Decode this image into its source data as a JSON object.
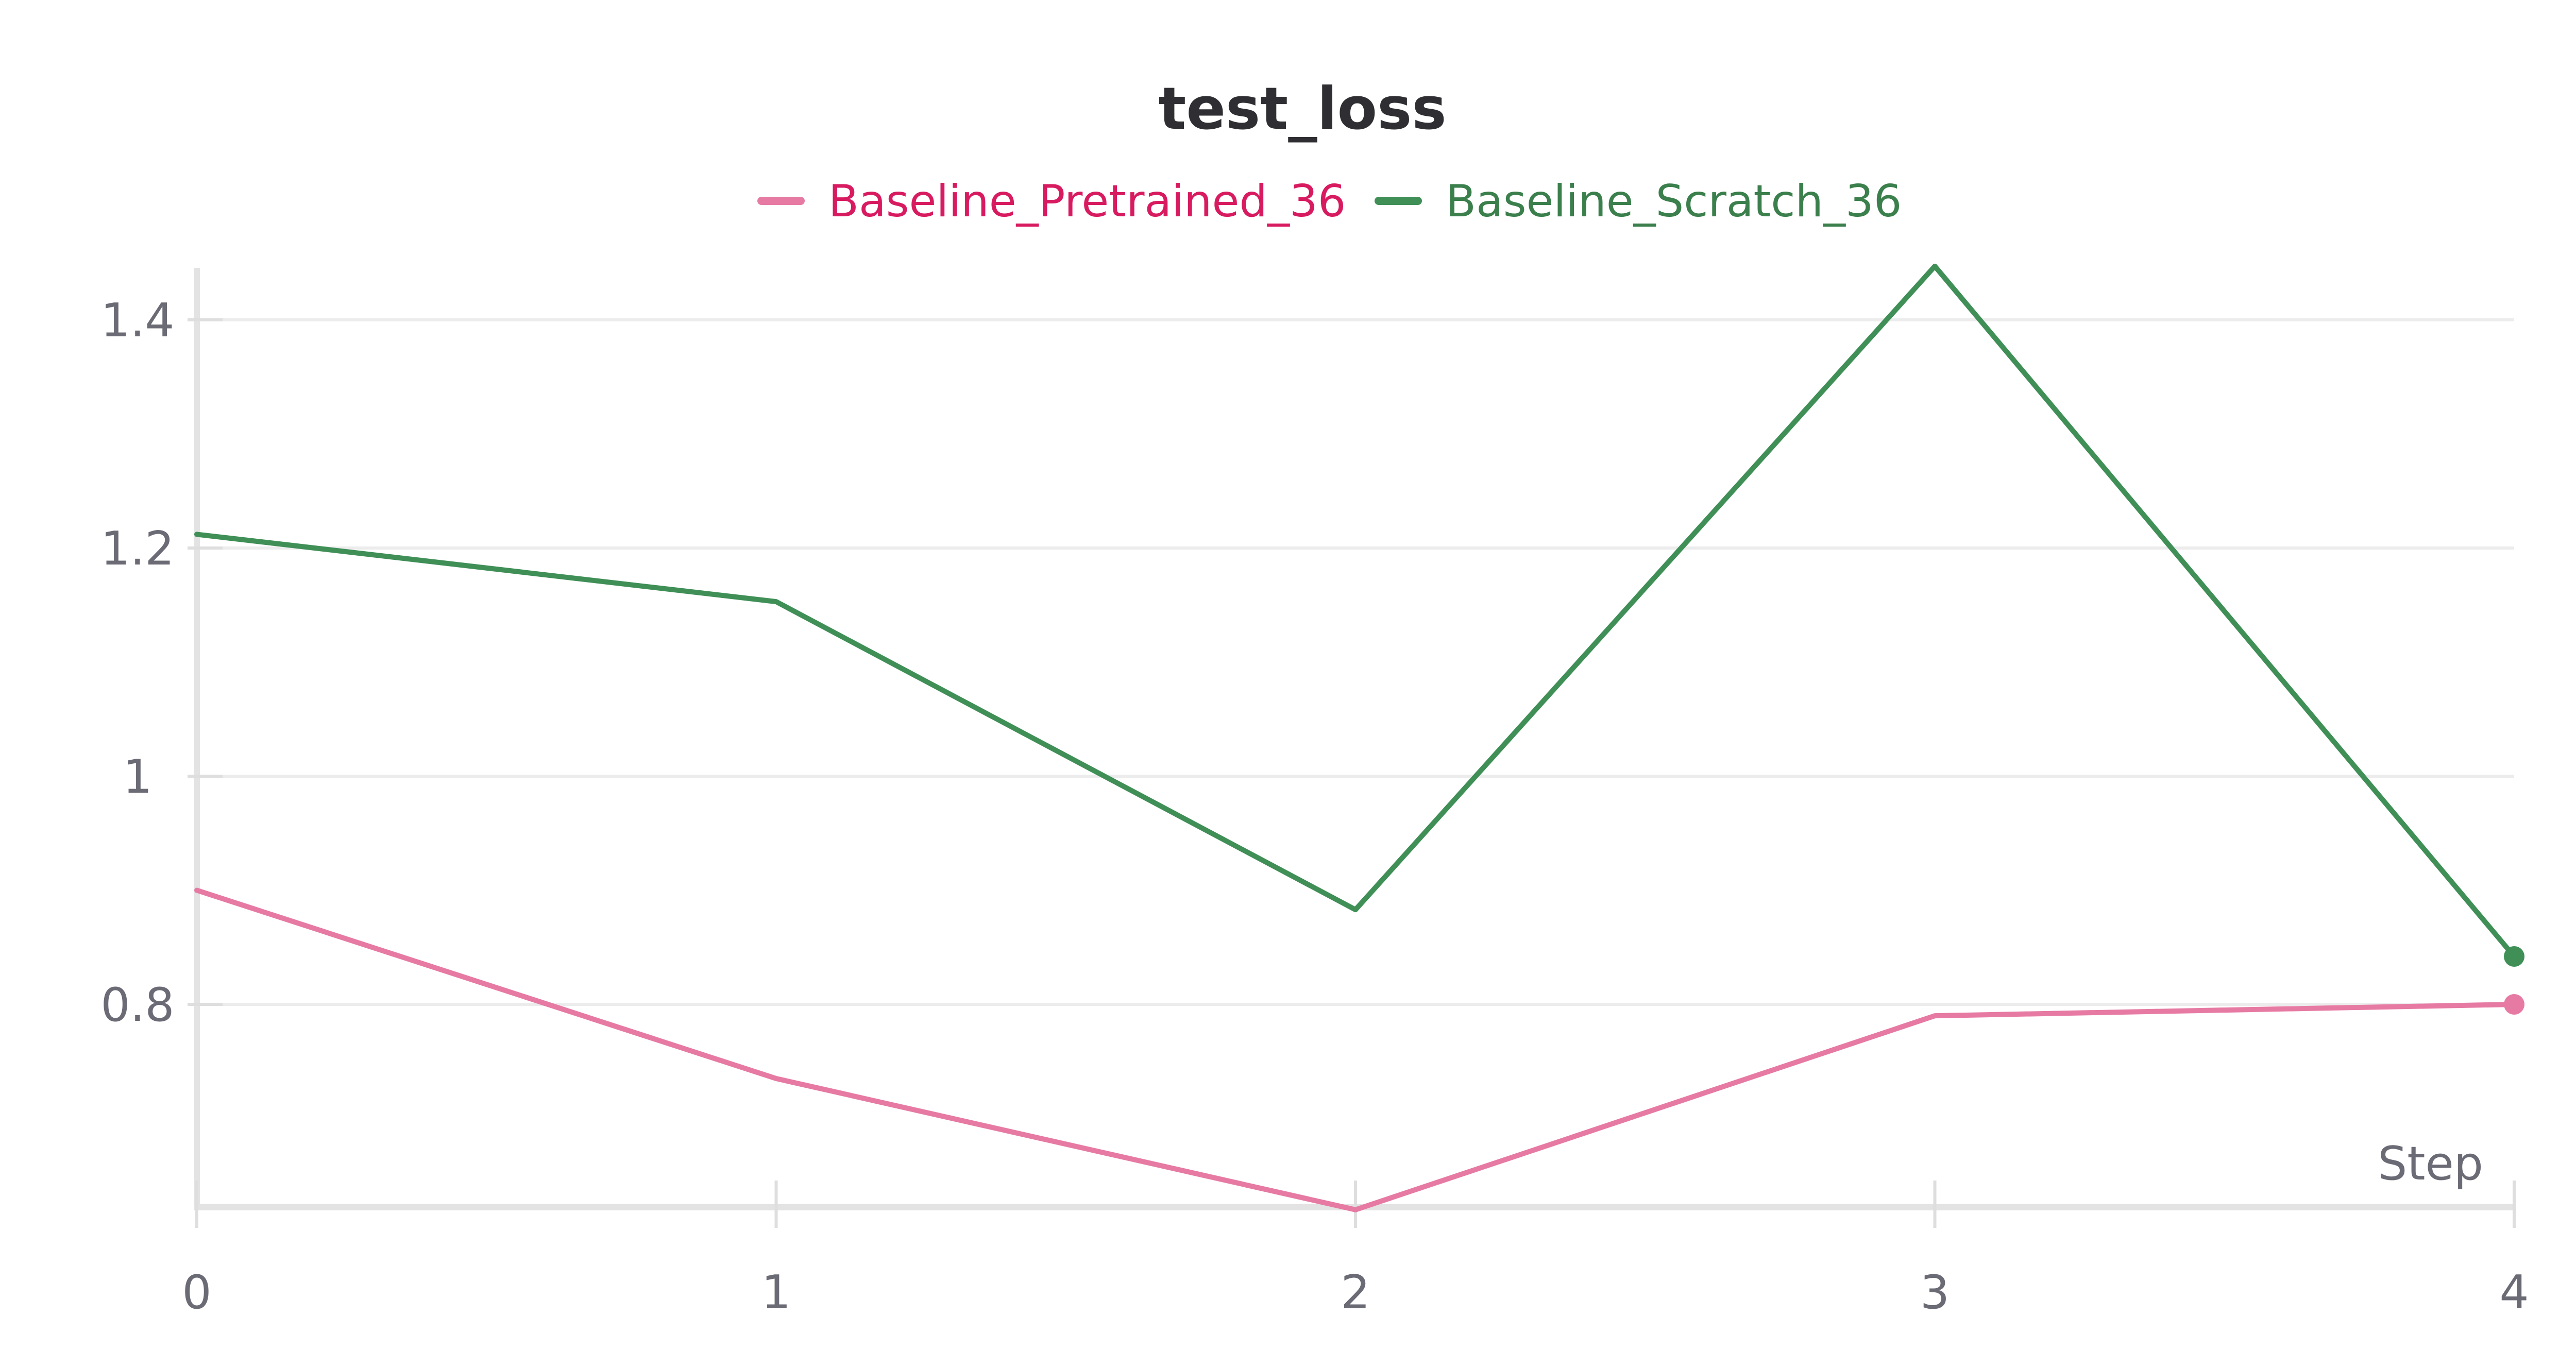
{
  "chart_data": {
    "type": "line",
    "title": "test_loss",
    "xlabel": "Step",
    "ylabel": "",
    "x": [
      0,
      1,
      2,
      3,
      4
    ],
    "xlim": [
      0,
      4
    ],
    "ylim": [
      0.62,
      1.45
    ],
    "x_ticks": [
      0,
      1,
      2,
      3,
      4
    ],
    "x_tick_labels": [
      "0",
      "1",
      "2",
      "3",
      "4"
    ],
    "y_ticks": [
      0.8,
      1.0,
      1.2,
      1.4
    ],
    "y_tick_labels": [
      "0.8",
      "1",
      "1.2",
      "1.4"
    ],
    "grid": true,
    "legend_position": "top-center",
    "series": [
      {
        "name": "Baseline_Pretrained_36",
        "values": [
          0.9,
          0.735,
          0.62,
          0.79,
          0.8
        ],
        "color": "#e67aa3",
        "label_color": "#d81b60"
      },
      {
        "name": "Baseline_Scratch_36",
        "values": [
          1.212,
          1.153,
          0.883,
          1.447,
          0.842
        ],
        "color": "#3f8f57",
        "label_color": "#3a7f4c"
      }
    ]
  }
}
